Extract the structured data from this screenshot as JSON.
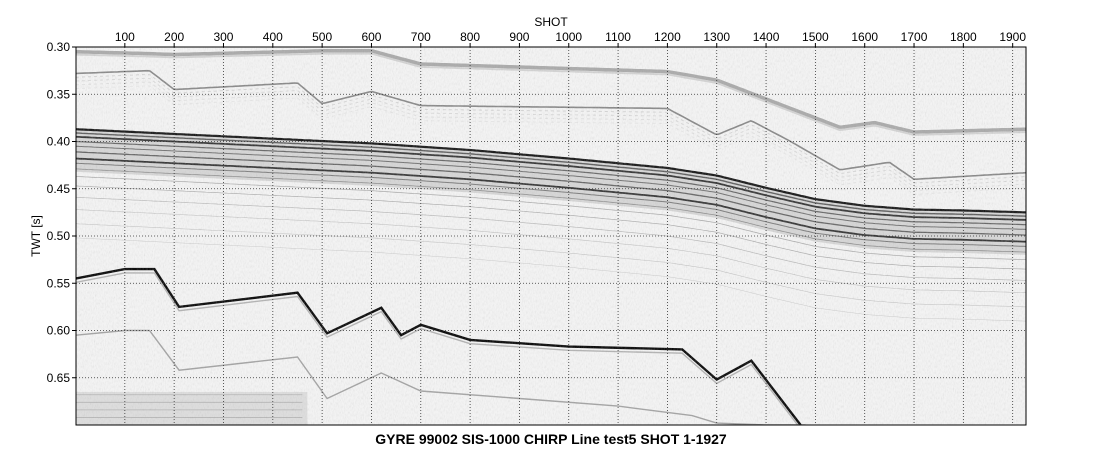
{
  "chart_data": {
    "type": "heatmap",
    "title": "GYRE 99002 SIS-1000 CHIRP Line test5 SHOT 1-1927",
    "xlabel": "SHOT",
    "ylabel": "TWT [s]",
    "xlim": [
      1,
      1927
    ],
    "ylim": [
      0.3,
      0.7
    ],
    "y_inverted": true,
    "x_axis_position": "top",
    "grid": true,
    "grid_style": "dotted",
    "colormap": "grayscale",
    "x_ticks": [
      100,
      200,
      300,
      400,
      500,
      600,
      700,
      800,
      900,
      1000,
      1100,
      1200,
      1300,
      1400,
      1500,
      1600,
      1700,
      1800,
      1900
    ],
    "y_ticks": [
      0.3,
      0.35,
      0.4,
      0.45,
      0.5,
      0.55,
      0.6,
      0.65
    ],
    "x_tick_labels": [
      "100",
      "200",
      "300",
      "400",
      "500",
      "600",
      "700",
      "800",
      "900",
      "1000",
      "1100",
      "1200",
      "1300",
      "1400",
      "1500",
      "1600",
      "1700",
      "1800",
      "1900"
    ],
    "y_tick_labels": [
      "0.30",
      "0.35",
      "0.40",
      "0.45",
      "0.50",
      "0.55",
      "0.60",
      "0.65"
    ],
    "series": [
      {
        "kind": "seafloor_multiple_upper",
        "x": [
          1,
          150,
          200,
          500,
          600,
          700,
          1200,
          1300,
          1400,
          1550,
          1620,
          1700,
          1927
        ],
        "y": [
          0.305,
          0.307,
          0.308,
          0.304,
          0.304,
          0.318,
          0.326,
          0.335,
          0.355,
          0.385,
          0.38,
          0.39,
          0.387
        ]
      },
      {
        "kind": "direct_arrival_reflector",
        "x": [
          1,
          150,
          200,
          450,
          500,
          600,
          700,
          1200,
          1300,
          1370,
          1450,
          1550,
          1650,
          1700,
          1927
        ],
        "y": [
          0.328,
          0.325,
          0.345,
          0.338,
          0.36,
          0.347,
          0.362,
          0.365,
          0.393,
          0.378,
          0.4,
          0.43,
          0.422,
          0.44,
          0.433
        ]
      },
      {
        "kind": "seafloor_main",
        "x": [
          1,
          200,
          400,
          600,
          800,
          1000,
          1200,
          1300,
          1400,
          1500,
          1600,
          1700,
          1800,
          1927
        ],
        "y": [
          0.387,
          0.392,
          0.397,
          0.402,
          0.409,
          0.418,
          0.428,
          0.436,
          0.449,
          0.461,
          0.468,
          0.472,
          0.473,
          0.475
        ]
      },
      {
        "kind": "strong_subbottom",
        "x": [
          1,
          100,
          160,
          210,
          450,
          510,
          620,
          660,
          700,
          800,
          1000,
          1230,
          1300,
          1370,
          1470
        ],
        "y": [
          0.545,
          0.535,
          0.535,
          0.575,
          0.56,
          0.603,
          0.576,
          0.605,
          0.594,
          0.61,
          0.617,
          0.62,
          0.652,
          0.632,
          0.7
        ]
      },
      {
        "kind": "lower_multiple",
        "x": [
          1,
          100,
          150,
          210,
          450,
          510,
          620,
          700,
          900,
          1100,
          1250,
          1300,
          1400,
          1480
        ],
        "y": [
          0.605,
          0.6,
          0.6,
          0.642,
          0.628,
          0.672,
          0.645,
          0.664,
          0.672,
          0.68,
          0.69,
          0.698,
          0.7,
          0.7
        ]
      }
    ]
  }
}
